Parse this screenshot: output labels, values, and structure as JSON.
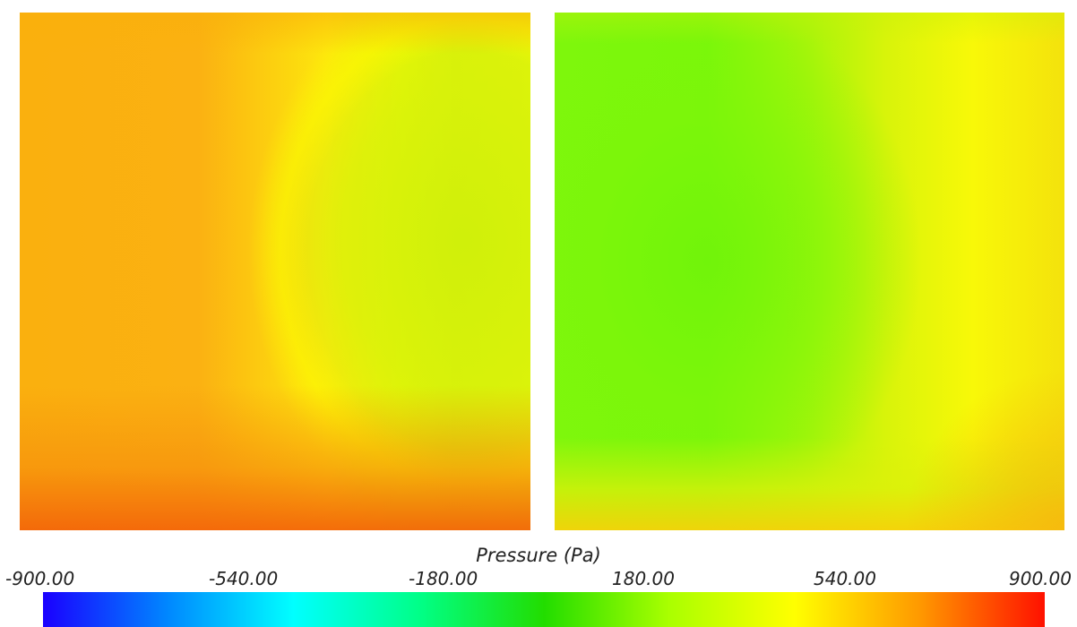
{
  "legend": {
    "title": "Pressure (Pa)",
    "ticks": [
      "-900.00",
      "-540.00",
      "-180.00",
      "180.00",
      "540.00",
      "900.00"
    ],
    "min": -900,
    "max": 900
  },
  "colormap": {
    "stops": [
      "#1a00ff",
      "#0088ff",
      "#00ffff",
      "#00ff88",
      "#22dd00",
      "#aaff00",
      "#ffff00",
      "#ff9900",
      "#ff1100"
    ]
  },
  "panels": {
    "left": {
      "base_color": "#f9ac0c",
      "highlight_color": "#ffff00",
      "bottom_color": "#f66b0a"
    },
    "right": {
      "base_color": "#7cf90c",
      "highlight_color": "#ffff00",
      "edge_color": "#f6c80a"
    }
  }
}
